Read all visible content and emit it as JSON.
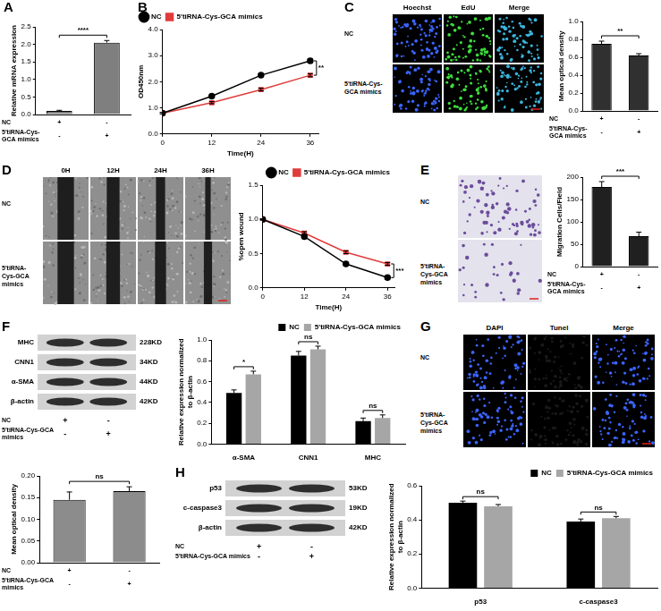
{
  "chart_data": [
    {
      "panel": "A",
      "type": "bar",
      "y_label": "Relative mRNA expression",
      "values": [
        0.1,
        2.05
      ],
      "errors": [
        0.02,
        0.06
      ],
      "color": "#7f7f7f",
      "ylim": [
        0,
        2.5
      ],
      "yticks": [
        {
          "value": 0,
          "label": "0.0"
        },
        0.5,
        {
          "value": 1,
          "label": "1.0"
        },
        1.5,
        {
          "value": 2,
          "label": "2.0"
        },
        2.5
      ],
      "grid": false,
      "annotations": [
        {
          "text": "****"
        }
      ],
      "condition_table": [
        {
          "label": "NC",
          "marks": [
            "+",
            "-"
          ]
        },
        {
          "label": "5'tiRNA-Cys-GCA mimics",
          "marks": [
            "-",
            "+"
          ]
        }
      ]
    },
    {
      "panel": "B",
      "type": "line",
      "x_label": "Time(H)",
      "y_label": "OD450nm",
      "x": [
        0,
        12,
        24,
        36
      ],
      "xlim": [
        0,
        38
      ],
      "xticks": [
        0,
        12,
        24,
        36
      ],
      "ylim": [
        0,
        4
      ],
      "yticks": [
        {
          "value": 0,
          "label": "0.0"
        },
        {
          "value": 1,
          "label": "1.0"
        },
        {
          "value": 2,
          "label": "2.0"
        },
        {
          "value": 3,
          "label": "3.0"
        },
        {
          "value": 4,
          "label": "4.0"
        }
      ],
      "grid": false,
      "legend": "top-left",
      "series": [
        {
          "name": "NC",
          "color": "#000000",
          "marker": "circle",
          "values": [
            0.8,
            1.45,
            2.25,
            2.8
          ],
          "errors": [
            0.03,
            0.04,
            0.05,
            0.08
          ]
        },
        {
          "name": "5'tiRNA-Cys-GCA mimics",
          "color": "#e03c3c",
          "marker": "square",
          "values": [
            0.8,
            1.2,
            1.7,
            2.25
          ],
          "errors": [
            0.03,
            0.04,
            0.05,
            0.06
          ]
        }
      ],
      "annotations": [
        {
          "text": "**"
        }
      ]
    },
    {
      "type": "bar",
      "y_label": "Mean optical density",
      "values": [
        0.75,
        0.62
      ],
      "errors": [
        0.03,
        0.02
      ],
      "color": "#303030",
      "ylim": [
        0,
        1
      ],
      "yticks": [
        {
          "value": 0,
          "label": "0.0"
        },
        0.2,
        0.4,
        0.6,
        0.8,
        {
          "value": 1,
          "label": "1.0"
        }
      ],
      "grid": false,
      "annotations": [
        {
          "text": "**"
        }
      ],
      "condition_table": [
        {
          "label": "NC",
          "marks": [
            "+",
            "-"
          ]
        },
        {
          "label": "5'tiRNA-Cys-GCA mimics",
          "marks": [
            "-",
            "+"
          ]
        }
      ]
    },
    {
      "type": "line",
      "x_label": "Time(H)",
      "y_label": "%open wound",
      "x": [
        0,
        12,
        24,
        36
      ],
      "xlim": [
        0,
        38
      ],
      "xticks": [
        0,
        12,
        24,
        36
      ],
      "ylim": [
        0,
        1.5
      ],
      "yticks": [
        {
          "value": 0,
          "label": "0.0"
        },
        0.5,
        {
          "value": 1,
          "label": "1.0"
        },
        1.5
      ],
      "grid": false,
      "legend": "top-right",
      "series": [
        {
          "name": "NC",
          "color": "#000000",
          "marker": "circle",
          "values": [
            1,
            0.75,
            0.35,
            0.15
          ],
          "errors": [
            0.01,
            0.02,
            0.02,
            0.02
          ]
        },
        {
          "name": "5'tiRNA-Cys-GCA mimics",
          "color": "#e03c3c",
          "marker": "square",
          "values": [
            1,
            0.8,
            0.52,
            0.35
          ],
          "errors": [
            0.01,
            0.02,
            0.02,
            0.02
          ]
        }
      ],
      "annotations": [
        {
          "text": "***"
        }
      ]
    },
    {
      "type": "bar",
      "y_label": "Migration Cells/Field",
      "values": [
        178,
        68
      ],
      "errors": [
        12,
        9
      ],
      "color": "#202020",
      "ylim": [
        0,
        200
      ],
      "yticks": [
        0,
        50,
        100,
        150,
        200
      ],
      "grid": false,
      "annotations": [
        {
          "text": "***"
        }
      ],
      "condition_table": [
        {
          "label": "NC",
          "marks": [
            "+",
            "-"
          ]
        },
        {
          "label": "5'tiRNA-Cys-GCA mimics",
          "marks": [
            "-",
            "+"
          ]
        }
      ]
    },
    {
      "type": "bar",
      "y_label": [
        "Relative expression normalized",
        "to β-actin"
      ],
      "categories": [
        "α-SMA",
        "CNN1",
        "MHC"
      ],
      "ylim": [
        0,
        1
      ],
      "yticks": [
        {
          "value": 0,
          "label": "0.0"
        },
        0.2,
        0.4,
        0.6,
        0.8,
        {
          "value": 1,
          "label": "1.0"
        }
      ],
      "grid": false,
      "legend": "top-right",
      "series": [
        {
          "name": "NC",
          "color": "#000000",
          "values": [
            0.49,
            0.85,
            0.22
          ],
          "errors": [
            0.03,
            0.04,
            0.03
          ]
        },
        {
          "name": "5'tiRNA-Cys-GCA mimics",
          "color": "#a6a6a6",
          "values": [
            0.67,
            0.91,
            0.25
          ],
          "errors": [
            0.03,
            0.03,
            0.03
          ]
        }
      ],
      "annotations": [
        {
          "category": "α-SMA",
          "text": "*"
        },
        {
          "category": "CNN1",
          "text": "ns"
        },
        {
          "category": "MHC",
          "text": "ns"
        }
      ]
    },
    {
      "type": "bar",
      "y_label": "Mean optical density",
      "values": [
        0.145,
        0.165
      ],
      "errors": [
        0.018,
        0.01
      ],
      "color": "#8c8c8c",
      "ylim": [
        0,
        0.2
      ],
      "yticks": [
        {
          "value": 0,
          "label": "0.00"
        },
        0.05,
        {
          "value": 0.1,
          "label": "0.10"
        },
        0.15,
        {
          "value": 0.2,
          "label": "0.20"
        }
      ],
      "grid": false,
      "annotations": [
        {
          "text": "ns"
        }
      ],
      "condition_table": [
        {
          "label": "NC",
          "marks": [
            "+",
            "-"
          ]
        },
        {
          "label": "5'tiRNA-Cys-GCA mimics",
          "marks": [
            "-",
            "+"
          ]
        }
      ]
    },
    {
      "type": "bar",
      "y_label": [
        "Relative expression normalized",
        "to β-actin"
      ],
      "categories": [
        "p53",
        "c-caspase3"
      ],
      "ylim": [
        0,
        0.6
      ],
      "yticks": [
        {
          "value": 0,
          "label": "0.0"
        },
        0.2,
        0.4,
        0.6
      ],
      "grid": false,
      "legend": "top-right",
      "series": [
        {
          "name": "NC",
          "color": "#000000",
          "values": [
            0.5,
            0.39
          ],
          "errors": [
            0.01,
            0.015
          ]
        },
        {
          "name": "5'tiRNA-Cys-GCA mimics",
          "color": "#a6a6a6",
          "values": [
            0.48,
            0.41
          ],
          "errors": [
            0.01,
            0.01
          ]
        }
      ],
      "annotations": [
        {
          "category": "p53",
          "text": "ns"
        },
        {
          "category": "c-caspase3",
          "text": "ns"
        }
      ]
    }
  ],
  "images": [
    {
      "panel": "C",
      "type": "fluorescence",
      "columns": [
        "Hoechst",
        "EdU",
        "Merge"
      ],
      "rows": [
        "NC",
        "5'tiRNA-Cys-GCA mimics"
      ],
      "colors": [
        "#3c64ff",
        "#3cdc3c",
        "#3cb4dc"
      ]
    },
    {
      "panel": "D",
      "type": "wound",
      "columns": [
        "0H",
        "12H",
        "24H",
        "36H"
      ],
      "rows": [
        "NC",
        "5'tiRNA-Cys-GCA mimics"
      ]
    },
    {
      "panel": "E",
      "type": "transwell",
      "rows": [
        "NC",
        "5'tiRNA-Cys-GCA mimics"
      ]
    },
    {
      "panel": "G",
      "type": "fluorescence",
      "columns": [
        "DAPI",
        "Tunel",
        "Merge"
      ],
      "rows": [
        "NC",
        "5'tiRNA-Cys-GCA mimics"
      ],
      "colors": [
        "#3c64ff",
        "#1a1a1a",
        "#3c64ff"
      ]
    }
  ],
  "blots": [
    {
      "panel": "F",
      "bands": [
        {
          "name": "MHC",
          "size": "228KD"
        },
        {
          "name": "CNN1",
          "size": "34KD"
        },
        {
          "name": "α-SMA",
          "size": "44KD"
        },
        {
          "name": "β-actin",
          "size": "42KD"
        }
      ],
      "condition_table": [
        {
          "label": "NC",
          "marks": [
            "+",
            "-"
          ]
        },
        {
          "label": "5'tiRNA-Cys-GCA mimics",
          "marks": [
            "-",
            "+"
          ]
        }
      ]
    },
    {
      "panel": "H",
      "bands": [
        {
          "name": "p53",
          "size": "53KD"
        },
        {
          "name": "c-caspase3",
          "size": "19KD"
        },
        {
          "name": "β-actin",
          "size": "42KD"
        }
      ],
      "condition_table": [
        {
          "label": "NC",
          "marks": [
            "+",
            "-"
          ]
        },
        {
          "label": "5'tiRNA-Cys-GCA mimics",
          "marks": [
            "-",
            "+"
          ]
        }
      ]
    }
  ]
}
